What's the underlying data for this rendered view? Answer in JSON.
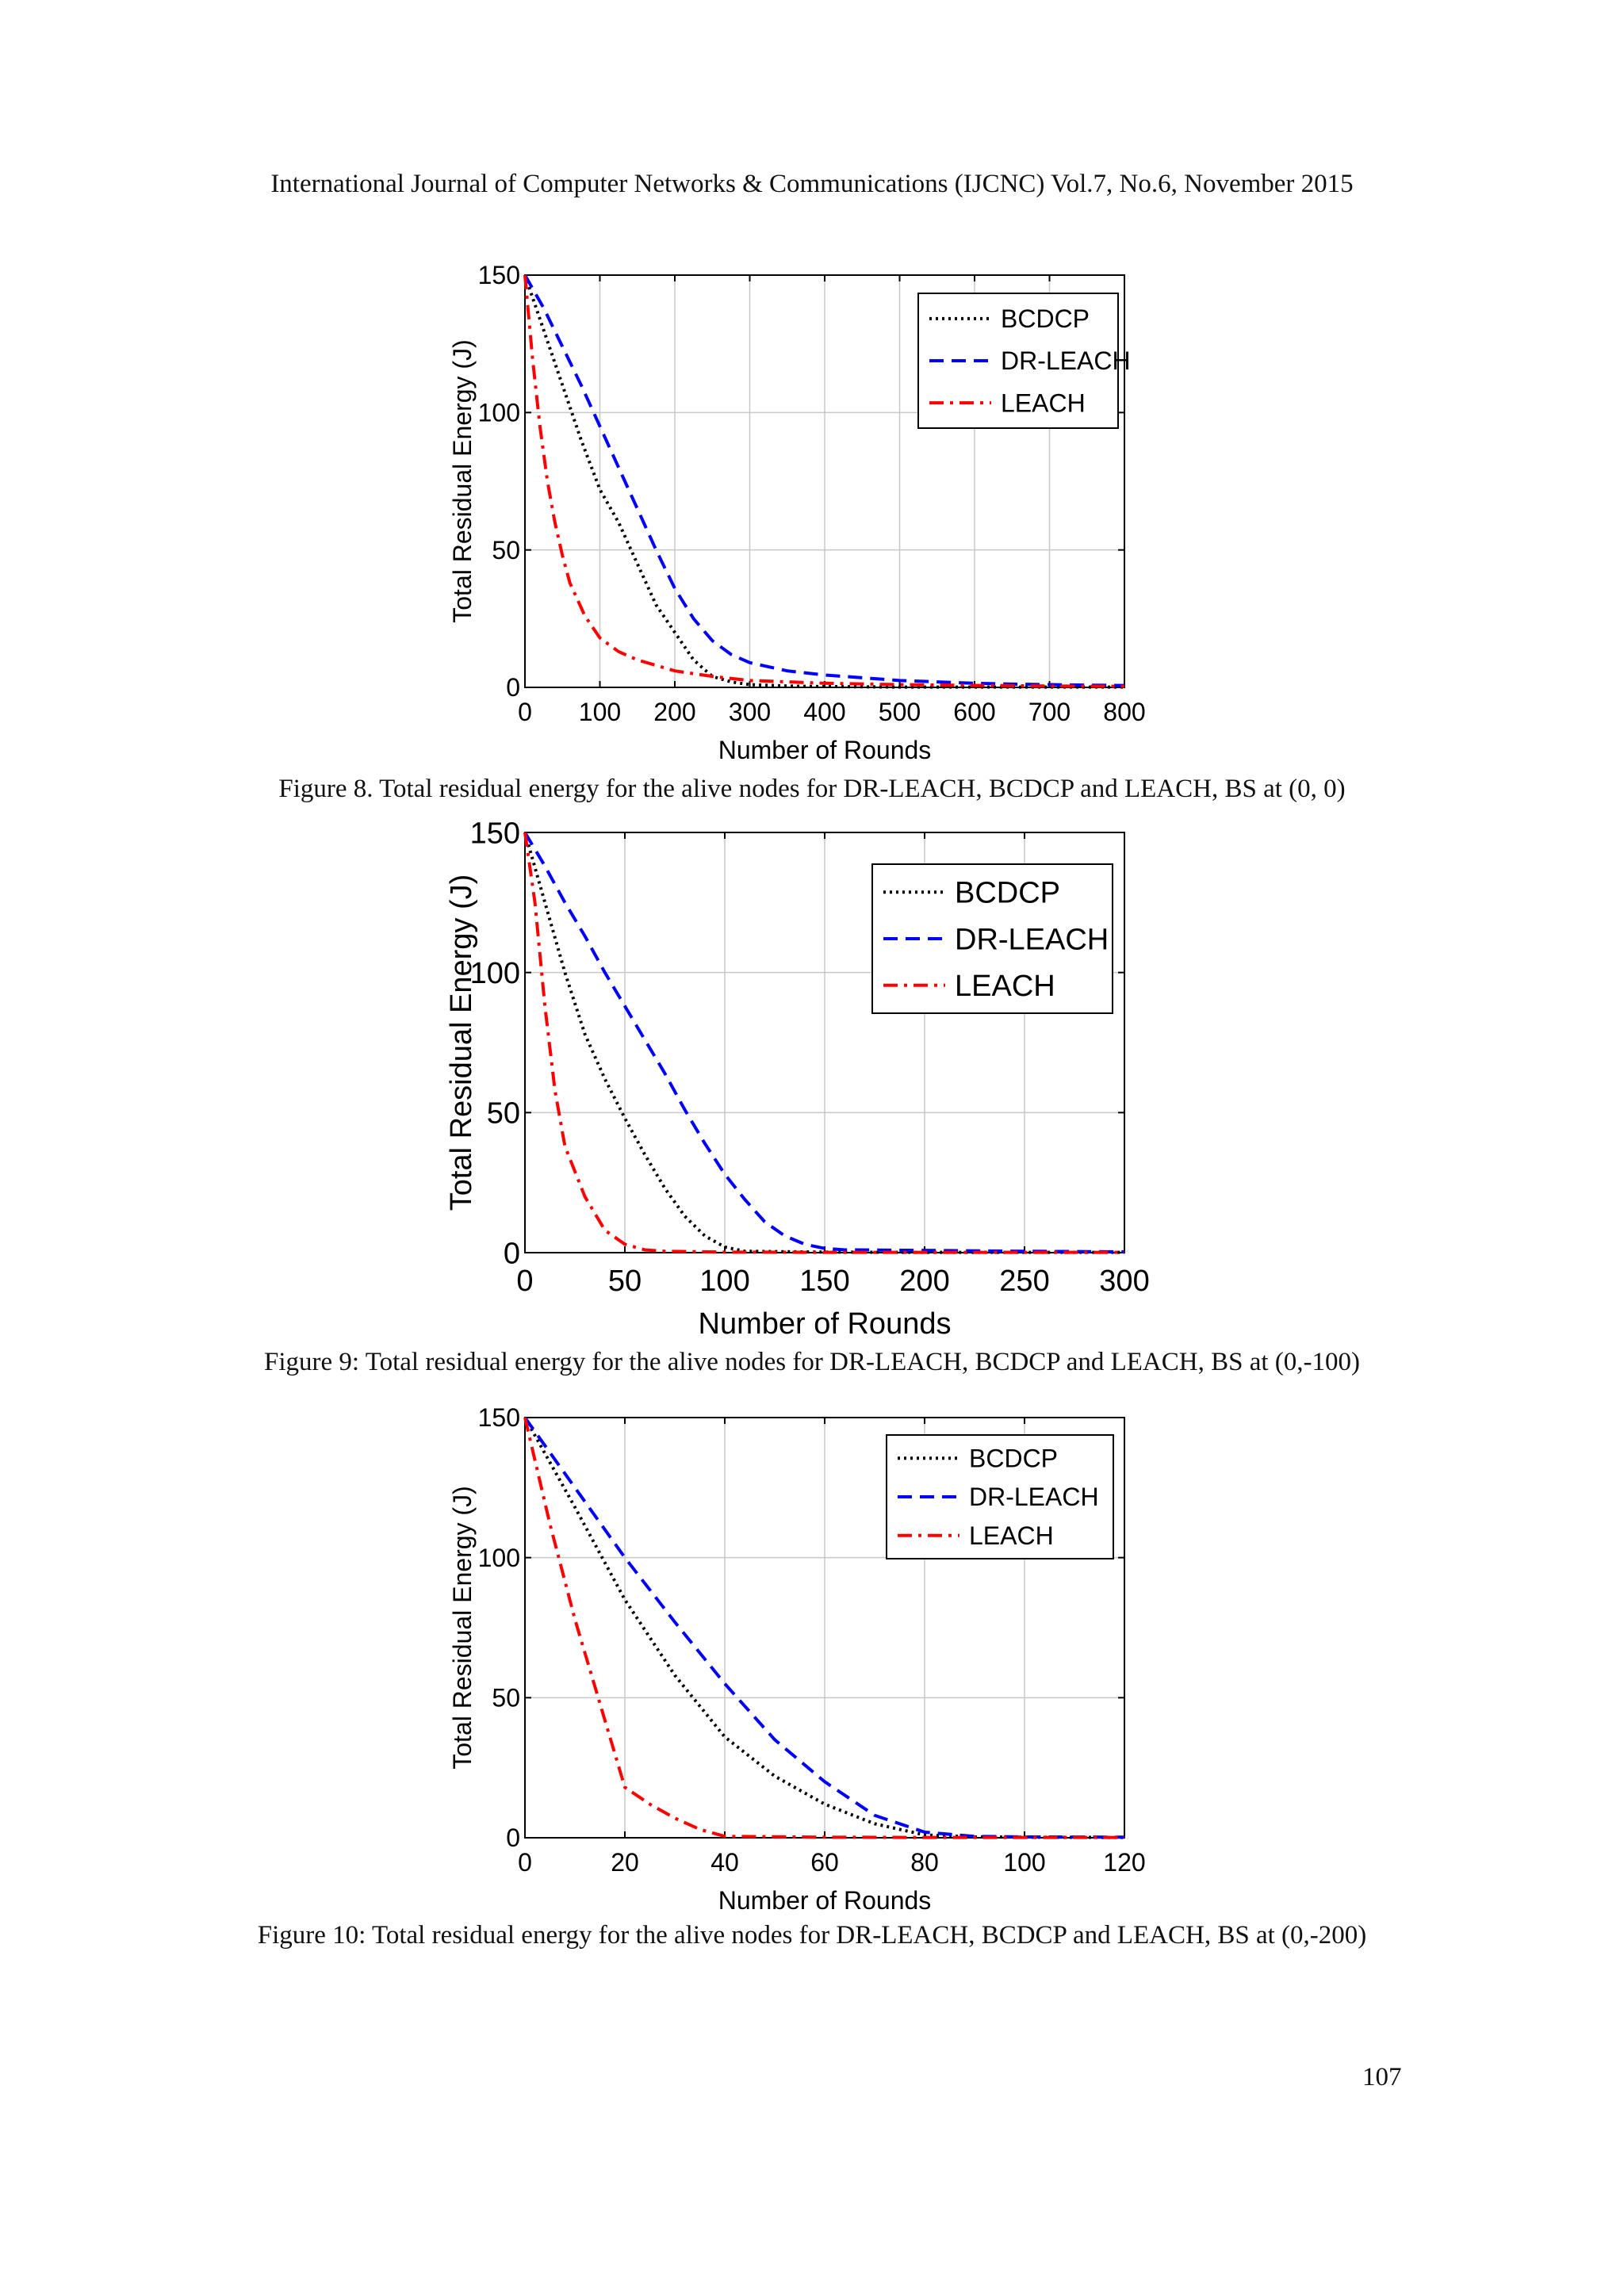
{
  "header": "International Journal of Computer Networks & Communications (IJCNC) Vol.7, No.6, November 2015",
  "page_number": "107",
  "figures": [
    {
      "caption": "Figure 8. Total residual energy for the alive nodes for DR-LEACH, BCDCP and LEACH, BS at (0, 0)"
    },
    {
      "caption": "Figure 9: Total residual energy for the alive nodes for DR-LEACH, BCDCP and LEACH, BS at (0,-100)"
    },
    {
      "caption": "Figure 10: Total residual energy for the alive nodes for DR-LEACH, BCDCP and LEACH, BS at (0,-200)"
    }
  ],
  "chart_data": [
    {
      "type": "line",
      "xlabel": "Number of Rounds",
      "ylabel": "Total Residual Energy (J)",
      "xlim": [
        0,
        800
      ],
      "ylim": [
        0,
        150
      ],
      "xticks": [
        0,
        100,
        200,
        300,
        400,
        500,
        600,
        700,
        800
      ],
      "yticks": [
        0,
        50,
        100,
        150
      ],
      "grid": true,
      "legend_position": "top-right",
      "series": [
        {
          "name": "BCDCP",
          "color": "#000000",
          "style": "dotted",
          "x": [
            0,
            25,
            50,
            75,
            100,
            125,
            150,
            175,
            200,
            225,
            250,
            275,
            300,
            350,
            400,
            500,
            600,
            700,
            800
          ],
          "y": [
            150,
            130,
            110,
            90,
            72,
            60,
            45,
            30,
            20,
            10,
            4,
            2,
            1,
            0.5,
            0.3,
            0.1,
            0.1,
            0.1,
            0.1
          ]
        },
        {
          "name": "DR-LEACH",
          "color": "#0000ff",
          "style": "dashed",
          "x": [
            0,
            25,
            50,
            75,
            100,
            125,
            150,
            175,
            200,
            225,
            250,
            275,
            300,
            350,
            400,
            450,
            500,
            550,
            600,
            650,
            700,
            750,
            800
          ],
          "y": [
            150,
            138,
            124,
            110,
            95,
            80,
            65,
            50,
            36,
            25,
            17,
            12,
            9,
            6,
            4.5,
            3.5,
            2.5,
            2,
            1.5,
            1.2,
            1,
            0.8,
            0.7
          ]
        },
        {
          "name": "LEACH",
          "color": "#ff0000",
          "style": "dashdot",
          "x": [
            0,
            10,
            20,
            30,
            40,
            50,
            60,
            80,
            100,
            125,
            150,
            200,
            250,
            300,
            400,
            500,
            600,
            700,
            800
          ],
          "y": [
            150,
            120,
            95,
            75,
            60,
            48,
            38,
            26,
            18,
            13,
            10,
            6,
            4,
            2.5,
            1.5,
            1,
            0.7,
            0.5,
            0.4
          ]
        }
      ]
    },
    {
      "type": "line",
      "xlabel": "Number of Rounds",
      "ylabel": "Total Residual Energy (J)",
      "xlim": [
        0,
        300
      ],
      "ylim": [
        0,
        150
      ],
      "xticks": [
        0,
        50,
        100,
        150,
        200,
        250,
        300
      ],
      "yticks": [
        0,
        50,
        100,
        150
      ],
      "grid": true,
      "legend_position": "top-right",
      "series": [
        {
          "name": "BCDCP",
          "color": "#000000",
          "style": "dotted",
          "x": [
            0,
            10,
            20,
            30,
            40,
            50,
            60,
            70,
            80,
            90,
            100,
            110,
            150,
            200,
            250,
            300
          ],
          "y": [
            150,
            125,
            100,
            78,
            62,
            48,
            35,
            23,
            13,
            6,
            2,
            0.5,
            0.2,
            0.1,
            0.1,
            0.1
          ]
        },
        {
          "name": "DR-LEACH",
          "color": "#0000ff",
          "style": "dashed",
          "x": [
            0,
            10,
            20,
            30,
            40,
            50,
            60,
            70,
            80,
            90,
            100,
            110,
            120,
            130,
            140,
            150,
            160,
            200,
            250,
            300
          ],
          "y": [
            150,
            138,
            125,
            113,
            100,
            88,
            76,
            64,
            51,
            39,
            28,
            19,
            11,
            6,
            3,
            1.5,
            1,
            0.8,
            0.5,
            0.3
          ]
        },
        {
          "name": "LEACH",
          "color": "#ff0000",
          "style": "dashdot",
          "x": [
            0,
            5,
            10,
            15,
            20,
            30,
            40,
            50,
            60,
            70,
            100,
            150,
            200,
            250,
            300
          ],
          "y": [
            150,
            125,
            88,
            58,
            38,
            20,
            8,
            3,
            1,
            0.5,
            0.2,
            0.1,
            0.1,
            0.1,
            0.1
          ]
        }
      ]
    },
    {
      "type": "line",
      "xlabel": "Number of Rounds",
      "ylabel": "Total Residual Energy (J)",
      "xlim": [
        0,
        120
      ],
      "ylim": [
        0,
        150
      ],
      "xticks": [
        0,
        20,
        40,
        60,
        80,
        100,
        120
      ],
      "yticks": [
        0,
        50,
        100,
        150
      ],
      "grid": true,
      "legend_position": "top-right",
      "series": [
        {
          "name": "BCDCP",
          "color": "#000000",
          "style": "dotted",
          "x": [
            0,
            10,
            20,
            30,
            40,
            50,
            60,
            70,
            80,
            90,
            100,
            120
          ],
          "y": [
            150,
            118,
            85,
            58,
            36,
            22,
            12,
            5,
            1,
            0.3,
            0.2,
            0.1
          ]
        },
        {
          "name": "DR-LEACH",
          "color": "#0000ff",
          "style": "dashed",
          "x": [
            0,
            10,
            20,
            30,
            40,
            50,
            60,
            70,
            80,
            90,
            100,
            120
          ],
          "y": [
            150,
            125,
            100,
            77,
            55,
            35,
            20,
            8,
            2,
            0.5,
            0.3,
            0.2
          ]
        },
        {
          "name": "LEACH",
          "color": "#ff0000",
          "style": "dashdot",
          "x": [
            0,
            5,
            10,
            15,
            20,
            25,
            30,
            35,
            40,
            60,
            80,
            100,
            120
          ],
          "y": [
            150,
            112,
            78,
            48,
            18,
            12,
            7,
            3,
            0.5,
            0.2,
            0.1,
            0.1,
            0.1
          ]
        }
      ]
    }
  ]
}
